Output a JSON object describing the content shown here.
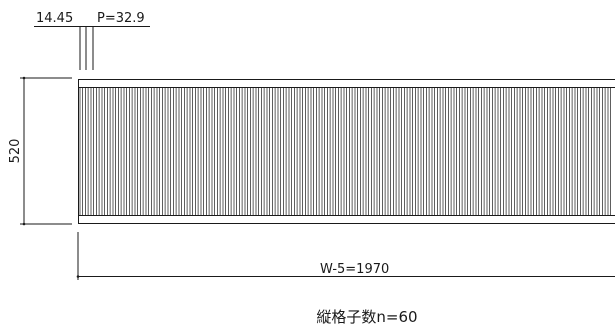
{
  "drawing": {
    "bar_width_label": "14.45",
    "pitch_label": "P=32.9",
    "height_label": "520",
    "width_label": "W-5=1970",
    "caption": "縦格子数n=60"
  },
  "grille": {
    "bar_count": 60,
    "line_color": "#1a1a1a"
  }
}
